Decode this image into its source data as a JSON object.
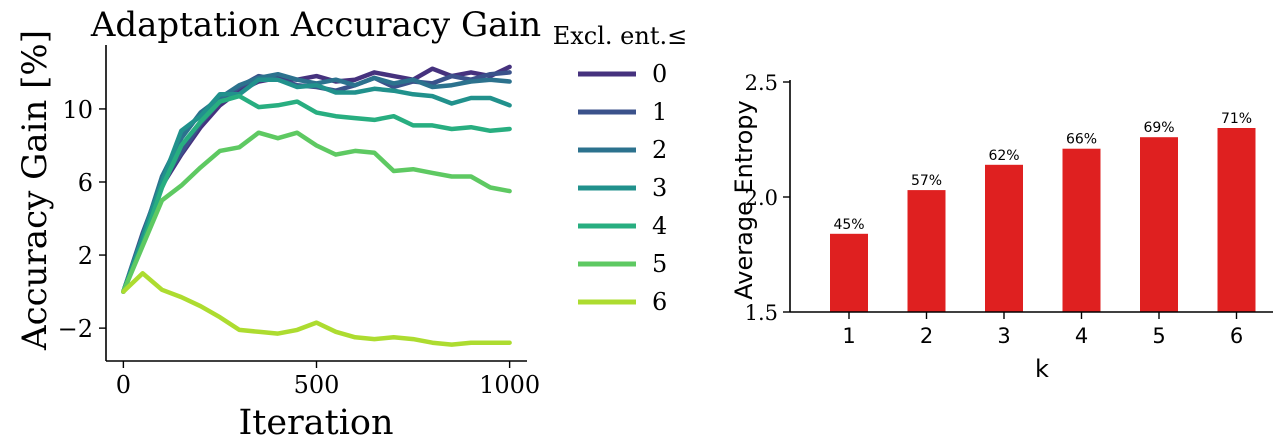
{
  "chart_data": [
    {
      "type": "line",
      "title": "Adaptation Accuracy Gain",
      "xlabel": "Iteration",
      "ylabel": "Accuracy Gain [%]",
      "xlim": [
        -45,
        1045
      ],
      "ylim": [
        -3.8,
        13.5
      ],
      "xticks": [
        0,
        500,
        1000
      ],
      "xtick_labels": [
        "0",
        "500",
        "1000"
      ],
      "yticks": [
        -2,
        2,
        6,
        10
      ],
      "ytick_labels": [
        "−2",
        "2",
        "6",
        "10"
      ],
      "grid": false,
      "legend": {
        "title": "Excl. ent.≤",
        "position": "outside-right",
        "entries": [
          "0",
          "1",
          "2",
          "3",
          "4",
          "5",
          "6"
        ]
      },
      "x": [
        0,
        50,
        100,
        150,
        200,
        250,
        300,
        350,
        400,
        450,
        500,
        550,
        600,
        650,
        700,
        750,
        800,
        850,
        900,
        950,
        1000
      ],
      "series": [
        {
          "name": "0",
          "color": "#46327e",
          "values": [
            0,
            3,
            5.8,
            7.5,
            9.0,
            10.2,
            11.0,
            11.5,
            11.7,
            11.6,
            11.8,
            11.5,
            11.6,
            12.0,
            11.8,
            11.6,
            12.2,
            11.8,
            12.0,
            11.8,
            12.3
          ]
        },
        {
          "name": "1",
          "color": "#3b528b",
          "values": [
            0,
            3.2,
            6.0,
            7.6,
            9.2,
            10.4,
            11.2,
            11.8,
            11.6,
            11.3,
            11.2,
            11.0,
            11.3,
            11.7,
            11.2,
            11.5,
            11.4,
            11.8,
            11.6,
            11.9,
            12.0
          ]
        },
        {
          "name": "2",
          "color": "#2c728e",
          "values": [
            0,
            3.0,
            6.3,
            8.4,
            9.8,
            10.6,
            11.3,
            11.7,
            11.9,
            11.6,
            11.4,
            11.6,
            11.3,
            11.7,
            11.4,
            11.6,
            11.2,
            11.3,
            11.5,
            11.6,
            11.5
          ]
        },
        {
          "name": "3",
          "color": "#21918c",
          "values": [
            0,
            3.0,
            6.0,
            8.8,
            9.6,
            10.8,
            10.8,
            11.6,
            11.6,
            11.2,
            11.3,
            10.9,
            10.9,
            11.1,
            11.0,
            10.8,
            10.7,
            10.3,
            10.6,
            10.6,
            10.2
          ]
        },
        {
          "name": "4",
          "color": "#28ae80",
          "values": [
            0,
            2.6,
            5.7,
            8.0,
            9.3,
            10.4,
            10.7,
            10.1,
            10.2,
            10.4,
            9.8,
            9.6,
            9.5,
            9.4,
            9.6,
            9.1,
            9.1,
            8.9,
            9.0,
            8.8,
            8.9
          ]
        },
        {
          "name": "5",
          "color": "#5ec962",
          "values": [
            0,
            2.5,
            5.0,
            5.8,
            6.8,
            7.7,
            7.9,
            8.7,
            8.4,
            8.7,
            8.0,
            7.5,
            7.7,
            7.6,
            6.6,
            6.7,
            6.5,
            6.3,
            6.3,
            5.7,
            5.5
          ]
        },
        {
          "name": "6",
          "color": "#addc30",
          "values": [
            0,
            1.0,
            0.1,
            -0.3,
            -0.8,
            -1.4,
            -2.1,
            -2.2,
            -2.3,
            -2.1,
            -1.7,
            -2.2,
            -2.5,
            -2.6,
            -2.5,
            -2.6,
            -2.8,
            -2.9,
            -2.8,
            -2.8,
            -2.8
          ]
        }
      ]
    },
    {
      "type": "bar",
      "title": "",
      "xlabel": "k",
      "ylabel": "Average Entropy",
      "categories": [
        "1",
        "2",
        "3",
        "4",
        "5",
        "6"
      ],
      "values": [
        1.84,
        2.03,
        2.14,
        2.21,
        2.26,
        2.3
      ],
      "data_labels": [
        "45%",
        "57%",
        "62%",
        "66%",
        "69%",
        "71%"
      ],
      "ylim": [
        1.5,
        2.5
      ],
      "yticks": [
        1.5,
        2.0,
        2.5
      ],
      "ytick_labels": [
        "1.5",
        "2.0",
        "2.5"
      ],
      "bar_color": "#df2020",
      "grid": false
    }
  ]
}
